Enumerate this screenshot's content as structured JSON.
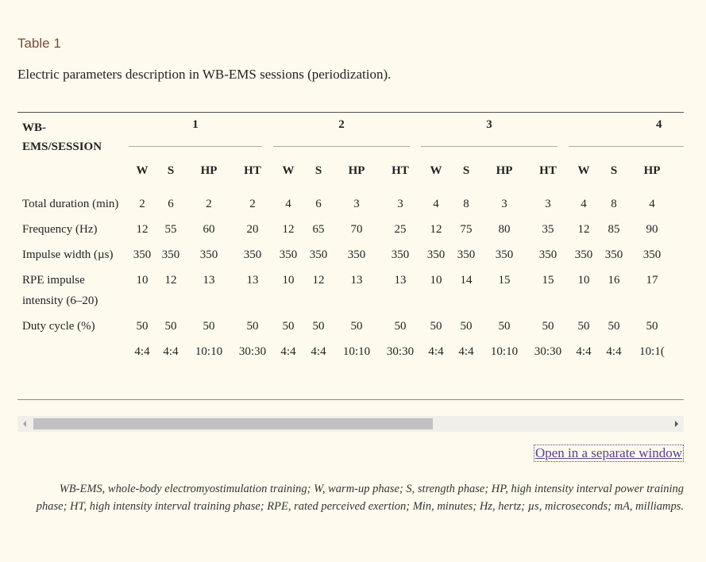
{
  "caption": {
    "title": "Table 1",
    "text": "Electric parameters description in WB-EMS sessions (periodization)."
  },
  "table": {
    "corner_header": "WB-EMS/SESSION",
    "sessions": [
      "1",
      "2",
      "3",
      "4"
    ],
    "phase_headers": [
      "W",
      "S",
      "HP",
      "HT",
      "W",
      "S",
      "HP",
      "HT",
      "W",
      "S",
      "HP",
      "HT",
      "W",
      "S",
      "HP"
    ],
    "rows": [
      {
        "label": "Total duration (min)",
        "values": [
          "2",
          "6",
          "2",
          "2",
          "4",
          "6",
          "3",
          "3",
          "4",
          "8",
          "3",
          "3",
          "4",
          "8",
          "4"
        ]
      },
      {
        "label": "Frequency (Hz)",
        "values": [
          "12",
          "55",
          "60",
          "20",
          "12",
          "65",
          "70",
          "25",
          "12",
          "75",
          "80",
          "35",
          "12",
          "85",
          "90"
        ]
      },
      {
        "label": "Impulse width (µs)",
        "values": [
          "350",
          "350",
          "350",
          "350",
          "350",
          "350",
          "350",
          "350",
          "350",
          "350",
          "350",
          "350",
          "350",
          "350",
          "350"
        ]
      },
      {
        "label": "RPE impulse intensity (6–20)",
        "values": [
          "10",
          "12",
          "13",
          "13",
          "10",
          "12",
          "13",
          "13",
          "10",
          "14",
          "15",
          "15",
          "10",
          "16",
          "17"
        ]
      },
      {
        "label": "Duty cycle (%)",
        "values": [
          "50",
          "50",
          "50",
          "50",
          "50",
          "50",
          "50",
          "50",
          "50",
          "50",
          "50",
          "50",
          "50",
          "50",
          "50"
        ]
      },
      {
        "label": "",
        "values": [
          "4:4",
          "4:4",
          "10:10",
          "30:30",
          "4:4",
          "4:4",
          "10:10",
          "30:30",
          "4:4",
          "4:4",
          "10:10",
          "30:30",
          "4:4",
          "4:4",
          "10:1("
        ]
      }
    ]
  },
  "scrollbar": {
    "position_fraction": 0.0,
    "visible_fraction": 0.63
  },
  "links": {
    "open_window": "Open in a separate window"
  },
  "footnote": "WB-EMS, whole-body electromyostimulation training; W, warm-up phase; S, strength phase; HP, high intensity interval power training phase; HT, high intensity interval training phase; RPE, rated perceived exertion; Min, minutes; Hz, hertz; µs, microseconds; mA, milliamps."
}
